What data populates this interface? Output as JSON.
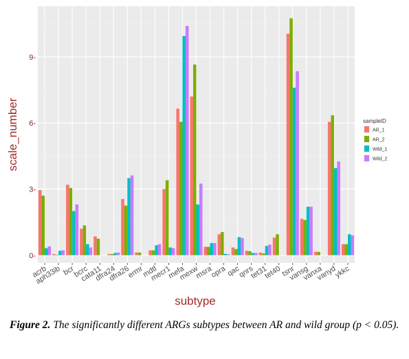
{
  "chart_data": {
    "type": "bar",
    "xlabel": "subtype",
    "ylabel": "scale_number",
    "ylim": [
      -0.35,
      11.3
    ],
    "yticks": [
      0,
      3,
      6,
      9
    ],
    "ytick_labels": [
      "0-",
      "3-",
      "6-",
      "9-"
    ],
    "grid": true,
    "legend": {
      "title": "sampleID",
      "placement": "right"
    },
    "categories": [
      "acrb",
      "aph33ib",
      "bcr",
      "bcrc",
      "cata11",
      "dfra24",
      "dfra26",
      "ermr",
      "mdtl",
      "mecr1",
      "mefa",
      "mexw",
      "msra",
      "opra",
      "qac",
      "qnrs",
      "tet31",
      "tet40",
      "tsnr",
      "vansg",
      "vanxa",
      "vanyd",
      "ykkc"
    ],
    "series": [
      {
        "name": "AR_1",
        "color": "#F8766D",
        "values": [
          2.95,
          0.05,
          3.2,
          1.2,
          0.85,
          0.05,
          2.55,
          0.12,
          0.22,
          3.0,
          6.65,
          7.2,
          0.38,
          0.95,
          0.35,
          0.2,
          0.12,
          0.8,
          10.05,
          1.65,
          0.15,
          6.05,
          0.5
        ]
      },
      {
        "name": "AR_2",
        "color": "#7CAE00",
        "values": [
          2.7,
          0.02,
          3.05,
          1.35,
          0.75,
          0.05,
          2.25,
          0.12,
          0.22,
          3.4,
          6.05,
          8.65,
          0.38,
          1.05,
          0.28,
          0.18,
          0.08,
          0.95,
          10.75,
          1.6,
          0.15,
          6.35,
          0.5
        ]
      },
      {
        "name": "Wild_1",
        "color": "#00BFC4",
        "values": [
          0.32,
          0.2,
          2.0,
          0.5,
          0.0,
          0.1,
          3.5,
          0.0,
          0.45,
          0.35,
          9.95,
          2.3,
          0.55,
          0.06,
          0.82,
          0.1,
          0.42,
          0.0,
          7.6,
          2.2,
          0.0,
          3.95,
          0.95
        ]
      },
      {
        "name": "Wild_2",
        "color": "#C77CFF",
        "values": [
          0.4,
          0.22,
          2.3,
          0.35,
          0.0,
          0.12,
          3.62,
          0.0,
          0.5,
          0.32,
          10.4,
          3.25,
          0.55,
          0.04,
          0.78,
          0.1,
          0.48,
          0.0,
          8.35,
          2.2,
          0.0,
          4.25,
          0.9
        ]
      }
    ]
  },
  "caption": {
    "label": "Figure 2.",
    "text": " The significantly different ARGs subtypes between AR and wild group (p < 0.05)."
  }
}
